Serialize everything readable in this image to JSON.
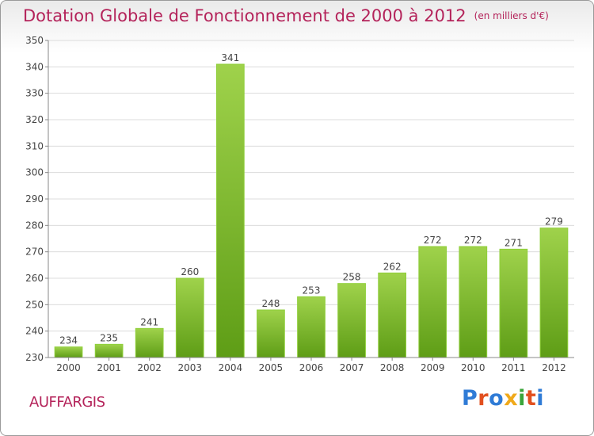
{
  "chart_data": {
    "type": "bar",
    "title": "Dotation Globale de Fonctionnement de 2000 à 2012",
    "subtitle": "(en milliers d'€)",
    "categories": [
      "2000",
      "2001",
      "2002",
      "2003",
      "2004",
      "2005",
      "2006",
      "2007",
      "2008",
      "2009",
      "2010",
      "2011",
      "2012"
    ],
    "values": [
      234,
      235,
      241,
      260,
      341,
      248,
      253,
      258,
      262,
      272,
      272,
      271,
      279
    ],
    "ylim": [
      230,
      350
    ],
    "yticks": [
      230,
      240,
      250,
      260,
      270,
      280,
      290,
      300,
      310,
      320,
      330,
      340,
      350
    ],
    "grid": true,
    "bar_color": "#7fbf2e",
    "title_color": "#b4235a"
  },
  "footer": {
    "town": "AUFFARGIS",
    "logo_text": "Proxiti"
  }
}
